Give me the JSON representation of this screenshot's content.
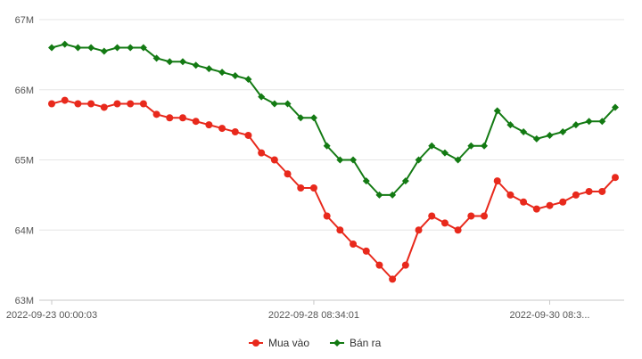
{
  "chart_data": {
    "type": "line",
    "y_ticks": [
      {
        "value": 63000000,
        "label": "63M"
      },
      {
        "value": 64000000,
        "label": "64M"
      },
      {
        "value": 65000000,
        "label": "65M"
      },
      {
        "value": 66000000,
        "label": "66M"
      },
      {
        "value": 67000000,
        "label": "67M"
      }
    ],
    "ylim": [
      63000000,
      67000000
    ],
    "x_tick_labels": [
      {
        "index": 0,
        "label": "2022-09-23 00:00:03"
      },
      {
        "index": 20,
        "label": "2022-09-28 08:34:01"
      },
      {
        "index": 38,
        "label": "2022-09-30 08:3..."
      }
    ],
    "grid": "horizontal",
    "legend_position": "bottom",
    "series": [
      {
        "name": "Mua vào",
        "color": "#e8291c",
        "marker": "circle",
        "values": [
          65.8,
          65.85,
          65.8,
          65.8,
          65.75,
          65.8,
          65.8,
          65.8,
          65.65,
          65.6,
          65.6,
          65.55,
          65.5,
          65.45,
          65.4,
          65.35,
          65.1,
          65.0,
          64.8,
          64.6,
          64.6,
          64.2,
          64.0,
          63.8,
          63.7,
          63.5,
          63.3,
          63.5,
          64.0,
          64.2,
          64.1,
          64.0,
          64.2,
          64.2,
          64.7,
          64.5,
          64.4,
          64.3,
          64.35,
          64.4,
          64.5,
          64.55,
          64.55,
          64.75
        ]
      },
      {
        "name": "Bán ra",
        "color": "#137a13",
        "marker": "diamond",
        "values": [
          66.6,
          66.65,
          66.6,
          66.6,
          66.55,
          66.6,
          66.6,
          66.6,
          66.45,
          66.4,
          66.4,
          66.35,
          66.3,
          66.25,
          66.2,
          66.15,
          65.9,
          65.8,
          65.8,
          65.6,
          65.6,
          65.2,
          65.0,
          65.0,
          64.7,
          64.5,
          64.5,
          64.7,
          65.0,
          65.2,
          65.1,
          65.0,
          65.2,
          65.2,
          65.7,
          65.5,
          65.4,
          65.3,
          65.35,
          65.4,
          65.5,
          65.55,
          65.55,
          65.75
        ]
      }
    ],
    "value_unit_multiplier": 1000000
  }
}
